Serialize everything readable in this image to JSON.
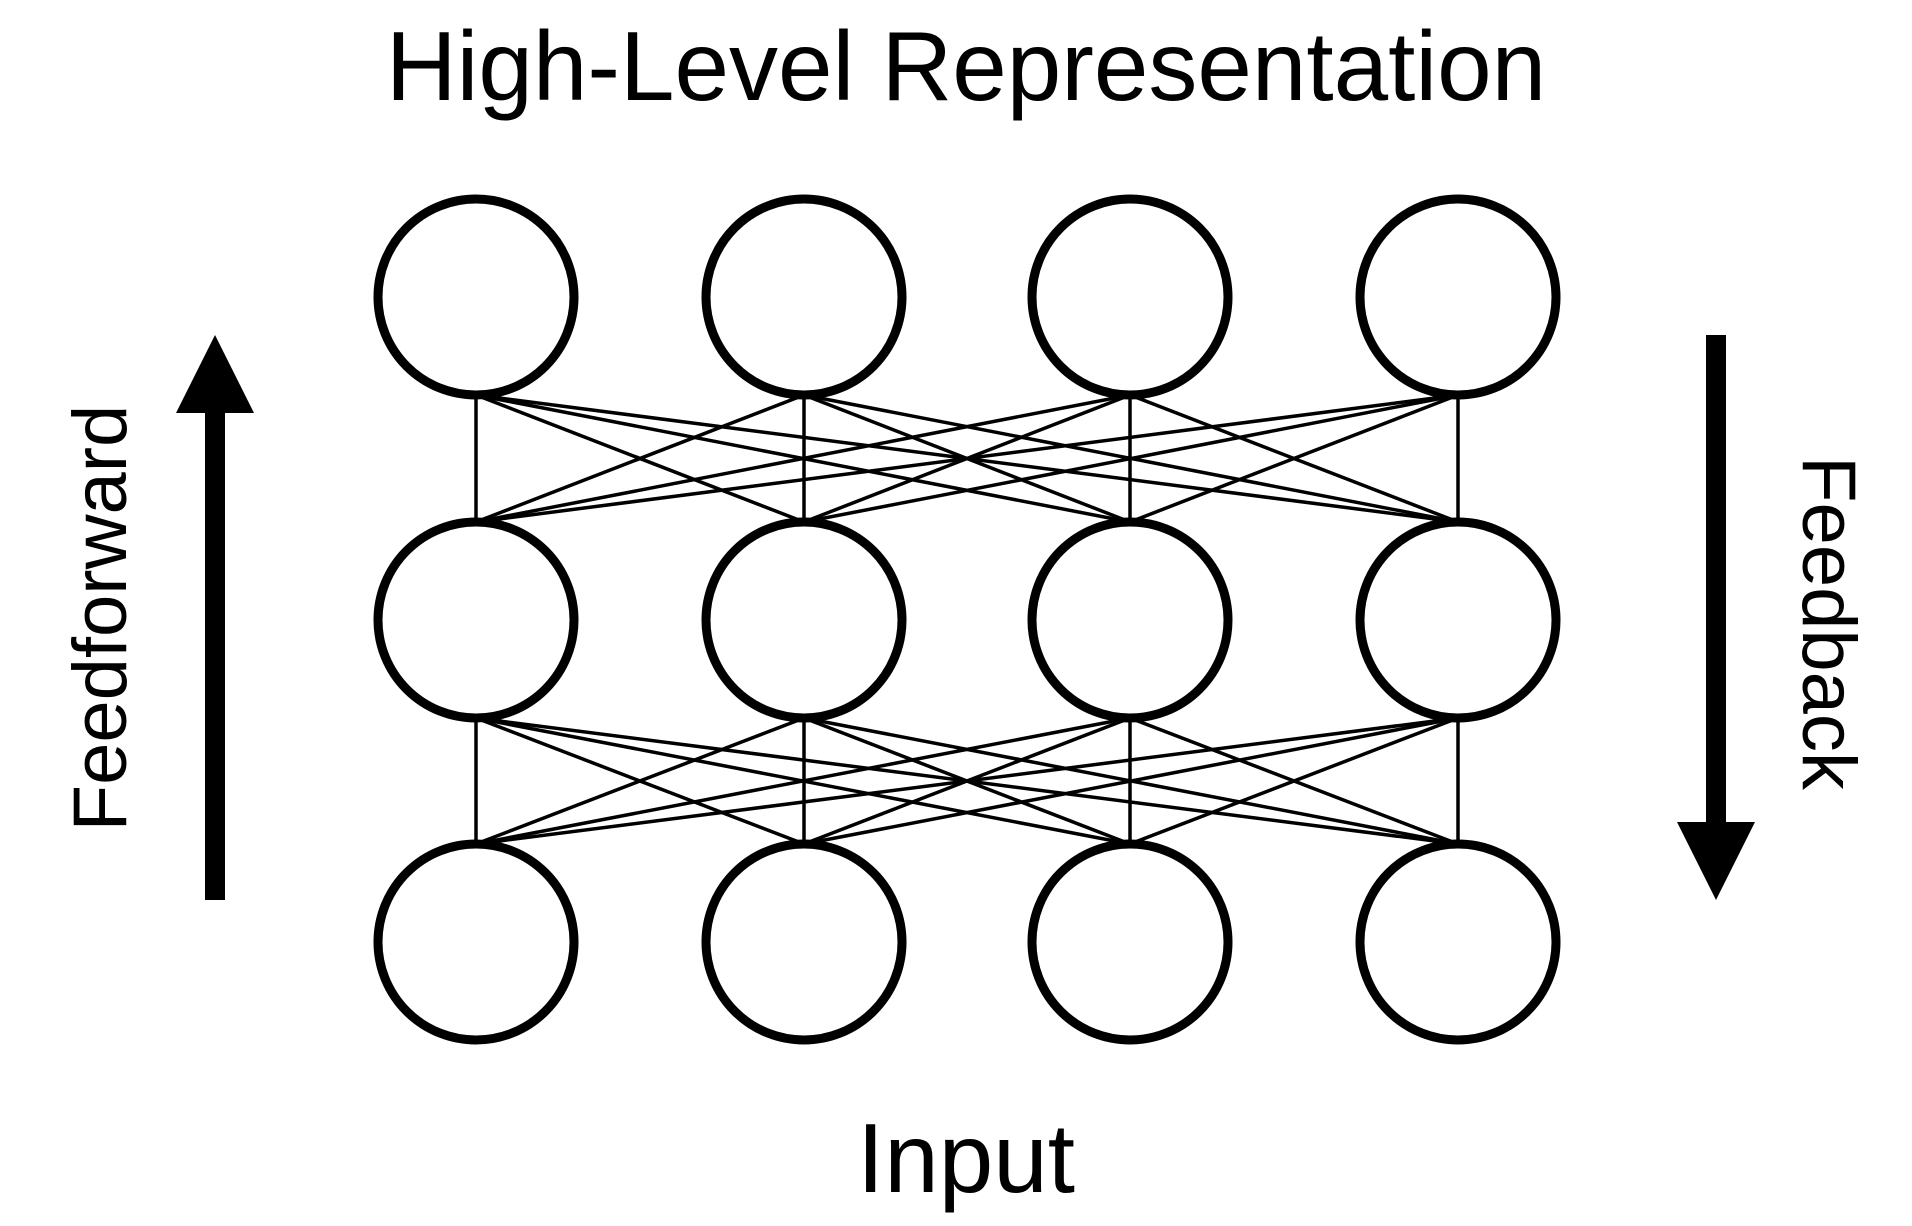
{
  "title": "High-Level Representation",
  "bottom_label": "Input",
  "left_label": "Feedforward",
  "right_label": "Feedback",
  "network": {
    "layers": 3,
    "nodes_per_layer": 4,
    "connectivity": "fully-connected between adjacent layers"
  },
  "colors": {
    "stroke": "#000000",
    "background": "#ffffff"
  }
}
